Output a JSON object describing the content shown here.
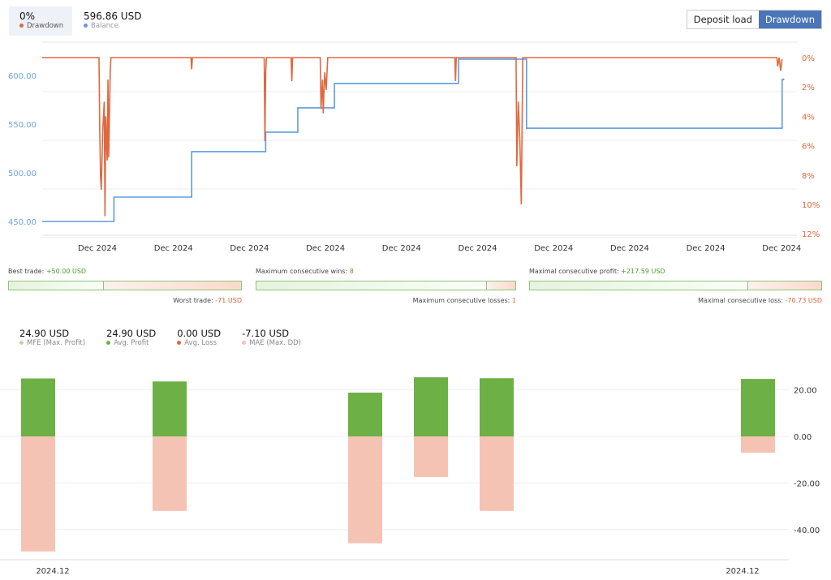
{
  "header": {
    "drawdown_value": "0%",
    "drawdown_label": "Drawdown",
    "balance_value": "596.86 USD",
    "balance_label": "Balance",
    "deposit_load_label": "Deposit load",
    "drawdown_tab_label": "Drawdown"
  },
  "colors": {
    "drawdown": "#e0683f",
    "balance": "#5f9be0",
    "profit": "#6db046",
    "mae": "#f5c3b4",
    "mfe": "#b8d9a6"
  },
  "chart_data": [
    {
      "type": "line",
      "left_ylim": [
        436,
        620
      ],
      "right_ylim": [
        -0.5,
        12
      ],
      "left_ticks": [
        "600.00",
        "550.00",
        "500.00",
        "450.00"
      ],
      "left_tick_values": [
        600,
        550,
        500,
        450
      ],
      "right_ticks": [
        "0%",
        "2%",
        "4%",
        "6%",
        "8%",
        "10%",
        "12%"
      ],
      "right_tick_values": [
        0,
        2,
        4,
        6,
        8,
        10,
        12
      ],
      "x_ticks": [
        "Dec 2024",
        "Dec 2024",
        "Dec 2024",
        "Dec 2024",
        "Dec 2024",
        "Dec 2024",
        "Dec 2024",
        "Dec 2024",
        "Dec 2024",
        "Dec 2024"
      ],
      "series": [
        {
          "name": "Balance",
          "axis": "left",
          "step": true,
          "points": [
            [
              0,
              450
            ],
            [
              9.6,
              475
            ],
            [
              20,
              521.7
            ],
            [
              29.9,
              541.7
            ],
            [
              34.2,
              566.7
            ],
            [
              39.1,
              591.7
            ],
            [
              55.7,
              616.7
            ],
            [
              64.8,
              545.8
            ],
            [
              99,
              595.8
            ],
            [
              99.2,
              596.86
            ]
          ]
        },
        {
          "name": "Drawdown",
          "axis": "right",
          "points": [
            [
              0,
              0
            ],
            [
              7.6,
              0
            ],
            [
              7.7,
              5
            ],
            [
              7.8,
              8
            ],
            [
              7.9,
              9
            ],
            [
              8.1,
              5
            ],
            [
              8.3,
              3
            ],
            [
              8.4,
              10.8
            ],
            [
              8.5,
              4
            ],
            [
              8.7,
              7
            ],
            [
              8.8,
              1.5
            ],
            [
              8.9,
              6.8
            ],
            [
              9.1,
              1
            ],
            [
              9.2,
              0
            ],
            [
              19.9,
              0
            ],
            [
              20,
              0.8
            ],
            [
              20.1,
              0
            ],
            [
              29.7,
              0
            ],
            [
              29.8,
              5.7
            ],
            [
              29.9,
              1
            ],
            [
              30,
              0
            ],
            [
              33.3,
              0
            ],
            [
              33.4,
              1.6
            ],
            [
              33.5,
              0
            ],
            [
              37.2,
              0
            ],
            [
              37.3,
              3.5
            ],
            [
              37.5,
              1.5
            ],
            [
              37.6,
              3.8
            ],
            [
              37.8,
              1
            ],
            [
              38.0,
              2.2
            ],
            [
              38.2,
              0
            ],
            [
              55.2,
              0
            ],
            [
              55.3,
              1.6
            ],
            [
              55.4,
              0
            ],
            [
              63.4,
              0
            ],
            [
              63.5,
              7.4
            ],
            [
              63.7,
              3
            ],
            [
              63.9,
              5.5
            ],
            [
              64.1,
              10
            ],
            [
              64.3,
              0
            ],
            [
              98.3,
              0
            ],
            [
              98.4,
              0.6
            ],
            [
              98.6,
              0
            ],
            [
              98.8,
              0.9
            ],
            [
              99,
              0.1
            ]
          ]
        }
      ]
    },
    {
      "type": "bar",
      "ylim": [
        -53,
        27
      ],
      "y_ticks": [
        "20.00",
        "0.00",
        "-20.00",
        "-40.00"
      ],
      "y_tick_values": [
        20,
        0,
        -20,
        -40
      ],
      "x_ticks": [
        "2024.12",
        "2024.12"
      ],
      "series": [
        {
          "name": "Avg. Profit",
          "values": [
            24.9,
            23.6,
            18.8,
            25.4,
            25.0,
            24.7
          ]
        },
        {
          "name": "MAE (Max. DD)",
          "values": [
            -49.4,
            -32,
            -45.9,
            -17.4,
            -32,
            -7.0
          ]
        }
      ]
    }
  ],
  "stats": {
    "best_trade_label": "Best trade:",
    "best_trade_value": "+50.00 USD",
    "worst_trade_label": "Worst trade:",
    "worst_trade_value": "-71 USD",
    "best_ratio": 0.41,
    "max_wins_label": "Maximum consecutive wins:",
    "max_wins_value": "8",
    "max_losses_label": "Maximum consecutive losses:",
    "max_losses_value": "1",
    "wins_ratio": 0.89,
    "max_profit_label": "Maximal consecutive profit:",
    "max_profit_value": "+217.59 USD",
    "max_loss_label": "Maximal consecutive loss:",
    "max_loss_value": "-70.73 USD",
    "profit_ratio": 0.75
  },
  "legend": [
    {
      "value": "24.90 USD",
      "label": "MFE (Max. Profit)",
      "color": "#b8d9a6"
    },
    {
      "value": "24.90 USD",
      "label": "Avg. Profit",
      "color": "#6db046"
    },
    {
      "value": "0.00 USD",
      "label": "Avg. Loss",
      "color": "#e0683f"
    },
    {
      "value": "-7.10 USD",
      "label": "MAE (Max. DD)",
      "color": "#f5c3b4"
    }
  ]
}
